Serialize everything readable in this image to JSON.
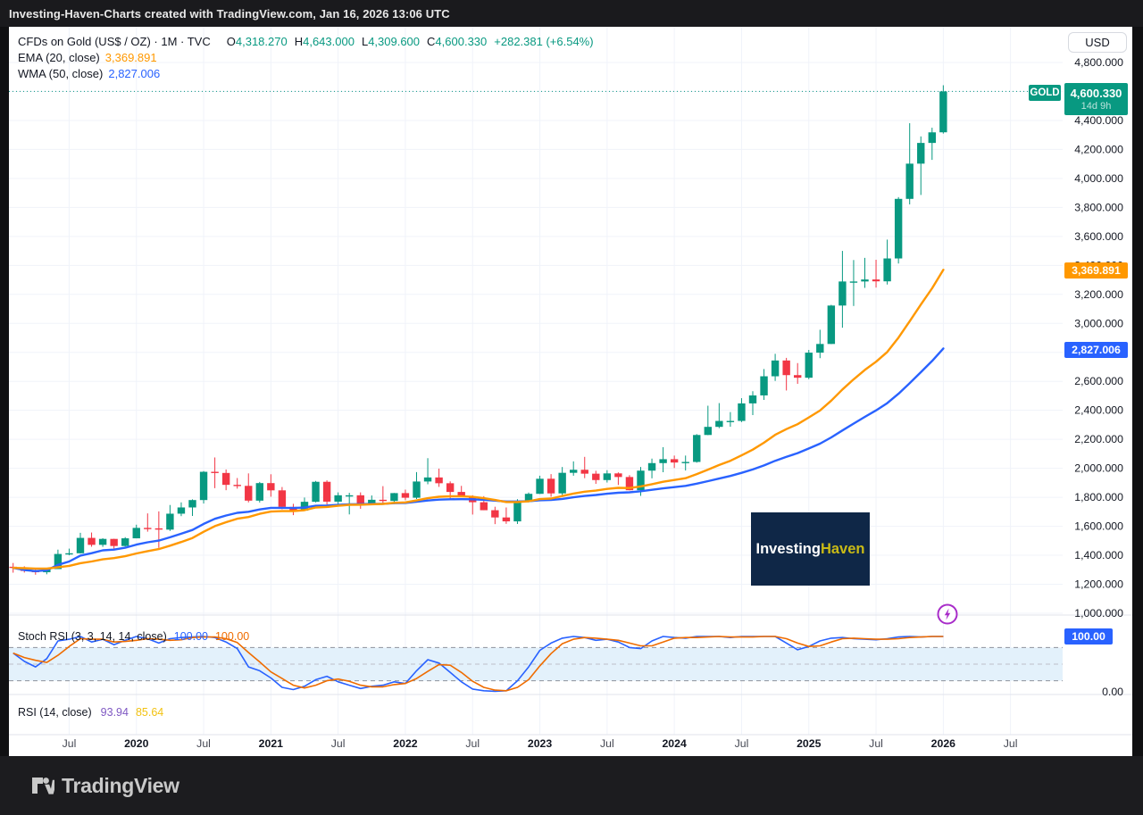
{
  "topbar": {
    "text": "Investing-Haven-Charts created with TradingView.com, Jan 16, 2026 13:06 UTC"
  },
  "legend": {
    "symbol": "CFDs on Gold (US$ / OZ) · 1M · TVC",
    "ohlc": [
      {
        "label": "O",
        "value": "4,318.270"
      },
      {
        "label": "H",
        "value": "4,643.000"
      },
      {
        "label": "L",
        "value": "4,309.600"
      },
      {
        "label": "C",
        "value": "4,600.330"
      }
    ],
    "change": "+282.381 (+6.54%)",
    "ema": {
      "name": "EMA (20, close)",
      "value": "3,369.891"
    },
    "wma": {
      "name": "WMA (50, close)",
      "value": "2,827.006"
    }
  },
  "axis": {
    "currency": "USD",
    "price_tick_labels": [
      "4,800.000",
      "4,600.000",
      "4,400.000",
      "4,200.000",
      "4,000.000",
      "3,800.000",
      "3,600.000",
      "3,400.000",
      "3,200.000",
      "3,000.000",
      "2,800.000",
      "2,600.000",
      "2,400.000",
      "2,200.000",
      "2,000.000",
      "1,800.000",
      "1,600.000",
      "1,400.000",
      "1,200.000",
      "1,000.000"
    ],
    "stoch_zero_label": "0.00"
  },
  "badges": {
    "symbol": "GOLD",
    "last_price": "4,600.330",
    "countdown": "14d 9h",
    "ema": "3,369.891",
    "wma": "2,827.006",
    "stoch": "100.00"
  },
  "panes": {
    "stoch": {
      "title": "Stoch RSI (3, 3, 14, 14, close)",
      "k_value": "100.00",
      "d_value": "100.00"
    },
    "rsi": {
      "title": "RSI (14, close)",
      "value1": "93.94",
      "value2": "85.64"
    }
  },
  "watermark": {
    "part1": "Investing",
    "part2": "Haven"
  },
  "footer": {
    "brand": "TradingView"
  },
  "colors": {
    "up": "#089981",
    "down": "#f23645",
    "ema": "#ff9800",
    "wma": "#2962ff",
    "stoch_k": "#2962ff",
    "stoch_d": "#ef6c00",
    "grid": "#f0f3fa",
    "band": "#e3f1fb",
    "divider": "#e0e3eb",
    "dash_dark": "#8f939c",
    "dash_mid": "#bcc0c9",
    "accent_teal": "#089981",
    "label_dark": "#131722",
    "label_month": "#434651"
  },
  "chart_data": {
    "type": "candlestick",
    "title": "CFDs on Gold (US$ / OZ), monthly, TVC",
    "timeframe": "1M",
    "start_month": "2019-02",
    "price_axis": {
      "min": 1000,
      "max": 4800,
      "step": 200
    },
    "last_price": 4600.33,
    "ohlc": [
      [
        1321,
        1347,
        1280,
        1313
      ],
      [
        1313,
        1324,
        1281,
        1292
      ],
      [
        1292,
        1310,
        1266,
        1283
      ],
      [
        1283,
        1307,
        1269,
        1305
      ],
      [
        1305,
        1439,
        1305,
        1409
      ],
      [
        1409,
        1446,
        1400,
        1414
      ],
      [
        1414,
        1555,
        1412,
        1520
      ],
      [
        1520,
        1557,
        1459,
        1472
      ],
      [
        1472,
        1518,
        1458,
        1513
      ],
      [
        1513,
        1514,
        1445,
        1464
      ],
      [
        1464,
        1525,
        1460,
        1517
      ],
      [
        1517,
        1611,
        1517,
        1589
      ],
      [
        1589,
        1689,
        1563,
        1586
      ],
      [
        1586,
        1703,
        1451,
        1577
      ],
      [
        1577,
        1747,
        1568,
        1687
      ],
      [
        1687,
        1765,
        1670,
        1730
      ],
      [
        1730,
        1786,
        1671,
        1781
      ],
      [
        1781,
        1981,
        1757,
        1976
      ],
      [
        1976,
        2075,
        1863,
        1968
      ],
      [
        1968,
        1992,
        1849,
        1886
      ],
      [
        1886,
        1933,
        1860,
        1879
      ],
      [
        1879,
        1965,
        1765,
        1777
      ],
      [
        1777,
        1906,
        1764,
        1898
      ],
      [
        1898,
        1959,
        1804,
        1848
      ],
      [
        1848,
        1871,
        1717,
        1734
      ],
      [
        1734,
        1755,
        1677,
        1708
      ],
      [
        1708,
        1798,
        1706,
        1769
      ],
      [
        1769,
        1913,
        1765,
        1907
      ],
      [
        1907,
        1917,
        1750,
        1770
      ],
      [
        1770,
        1834,
        1750,
        1814
      ],
      [
        1814,
        1831,
        1682,
        1814
      ],
      [
        1814,
        1834,
        1721,
        1757
      ],
      [
        1757,
        1813,
        1746,
        1783
      ],
      [
        1783,
        1877,
        1759,
        1775
      ],
      [
        1775,
        1830,
        1753,
        1829
      ],
      [
        1829,
        1853,
        1780,
        1797
      ],
      [
        1797,
        1974,
        1788,
        1909
      ],
      [
        1909,
        2070,
        1890,
        1937
      ],
      [
        1937,
        1998,
        1872,
        1897
      ],
      [
        1897,
        1910,
        1787,
        1837
      ],
      [
        1837,
        1879,
        1805,
        1807
      ],
      [
        1807,
        1814,
        1681,
        1766
      ],
      [
        1766,
        1808,
        1711,
        1711
      ],
      [
        1711,
        1735,
        1615,
        1661
      ],
      [
        1661,
        1730,
        1617,
        1634
      ],
      [
        1634,
        1787,
        1616,
        1769
      ],
      [
        1769,
        1833,
        1765,
        1824
      ],
      [
        1824,
        1949,
        1823,
        1928
      ],
      [
        1928,
        1960,
        1804,
        1827
      ],
      [
        1827,
        2009,
        1809,
        1969
      ],
      [
        1969,
        2048,
        1949,
        1990
      ],
      [
        1990,
        2079,
        1932,
        1963
      ],
      [
        1963,
        1983,
        1893,
        1919
      ],
      [
        1919,
        1987,
        1902,
        1965
      ],
      [
        1965,
        1972,
        1885,
        1940
      ],
      [
        1940,
        1953,
        1848,
        1849
      ],
      [
        1849,
        2009,
        1810,
        1984
      ],
      [
        1984,
        2067,
        1931,
        2036
      ],
      [
        2036,
        2146,
        1973,
        2063
      ],
      [
        2063,
        2088,
        2002,
        2040
      ],
      [
        2040,
        2088,
        1985,
        2044
      ],
      [
        2044,
        2236,
        2039,
        2230
      ],
      [
        2230,
        2432,
        2229,
        2286
      ],
      [
        2286,
        2450,
        2277,
        2327
      ],
      [
        2327,
        2388,
        2287,
        2327
      ],
      [
        2327,
        2484,
        2319,
        2448
      ],
      [
        2448,
        2532,
        2367,
        2503
      ],
      [
        2503,
        2685,
        2472,
        2635
      ],
      [
        2635,
        2790,
        2603,
        2744
      ],
      [
        2744,
        2762,
        2537,
        2643
      ],
      [
        2643,
        2726,
        2583,
        2625
      ],
      [
        2625,
        2817,
        2615,
        2798
      ],
      [
        2798,
        2956,
        2760,
        2858
      ],
      [
        2858,
        3128,
        2857,
        3123
      ],
      [
        3123,
        3500,
        2970,
        3289
      ],
      [
        3289,
        3437,
        3120,
        3289
      ],
      [
        3289,
        3452,
        3245,
        3303
      ],
      [
        3303,
        3439,
        3247,
        3290
      ],
      [
        3290,
        3578,
        3268,
        3448
      ],
      [
        3448,
        3871,
        3413,
        3859
      ],
      [
        3859,
        4381,
        3821,
        4102
      ],
      [
        4102,
        4290,
        3886,
        4245
      ],
      [
        4245,
        4350,
        4128,
        4318
      ],
      [
        4318.27,
        4643,
        4309.6,
        4600.33
      ]
    ],
    "time_ticks": [
      {
        "label": "Jul",
        "month_index": 5,
        "bold": false
      },
      {
        "label": "2020",
        "month_index": 11,
        "bold": true
      },
      {
        "label": "Jul",
        "month_index": 17,
        "bold": false
      },
      {
        "label": "2021",
        "month_index": 23,
        "bold": true
      },
      {
        "label": "Jul",
        "month_index": 29,
        "bold": false
      },
      {
        "label": "2022",
        "month_index": 35,
        "bold": true
      },
      {
        "label": "Jul",
        "month_index": 41,
        "bold": false
      },
      {
        "label": "2023",
        "month_index": 47,
        "bold": true
      },
      {
        "label": "Jul",
        "month_index": 53,
        "bold": false
      },
      {
        "label": "2024",
        "month_index": 59,
        "bold": true
      },
      {
        "label": "Jul",
        "month_index": 65,
        "bold": false
      },
      {
        "label": "2025",
        "month_index": 71,
        "bold": true
      },
      {
        "label": "Jul",
        "month_index": 77,
        "bold": false
      },
      {
        "label": "2026",
        "month_index": 83,
        "bold": true
      },
      {
        "label": "Jul",
        "month_index": 89,
        "bold": false
      }
    ],
    "indicators": {
      "ema_period": 20,
      "ema_end": 3369.891,
      "wma_period": 50,
      "wma_end": 2827.006
    },
    "stoch_rsi": {
      "levels": [
        80,
        50,
        20
      ],
      "k": [
        70,
        55,
        45,
        60,
        92,
        95,
        100,
        90,
        95,
        85,
        93,
        100,
        96,
        88,
        96,
        98,
        99,
        100,
        98,
        90,
        78,
        45,
        38,
        25,
        8,
        4,
        10,
        22,
        28,
        18,
        12,
        6,
        10,
        12,
        18,
        15,
        38,
        58,
        52,
        35,
        18,
        5,
        2,
        1,
        2,
        20,
        45,
        75,
        88,
        97,
        100,
        98,
        93,
        95,
        90,
        80,
        78,
        92,
        100,
        98,
        97,
        100,
        100,
        100,
        98,
        100,
        100,
        100,
        100,
        88,
        76,
        82,
        92,
        97,
        98,
        96,
        95,
        94,
        96,
        99,
        100,
        99,
        100,
        100
      ],
      "d": [
        70,
        62,
        57,
        53,
        66,
        82,
        96,
        95,
        95,
        90,
        91,
        93,
        96,
        95,
        93,
        94,
        98,
        99,
        99,
        96,
        89,
        71,
        54,
        36,
        24,
        12,
        7,
        12,
        20,
        23,
        19,
        12,
        9,
        9,
        13,
        15,
        24,
        37,
        49,
        48,
        35,
        19,
        8,
        3,
        2,
        8,
        22,
        47,
        69,
        87,
        95,
        98,
        97,
        95,
        93,
        88,
        83,
        83,
        90,
        97,
        98,
        98,
        99,
        100,
        99,
        99,
        99,
        100,
        100,
        96,
        88,
        82,
        83,
        90,
        96,
        97,
        96,
        95,
        95,
        96,
        98,
        99,
        100,
        100
      ]
    },
    "rsi": {
      "shown_values": [
        93.94,
        85.64
      ]
    }
  }
}
